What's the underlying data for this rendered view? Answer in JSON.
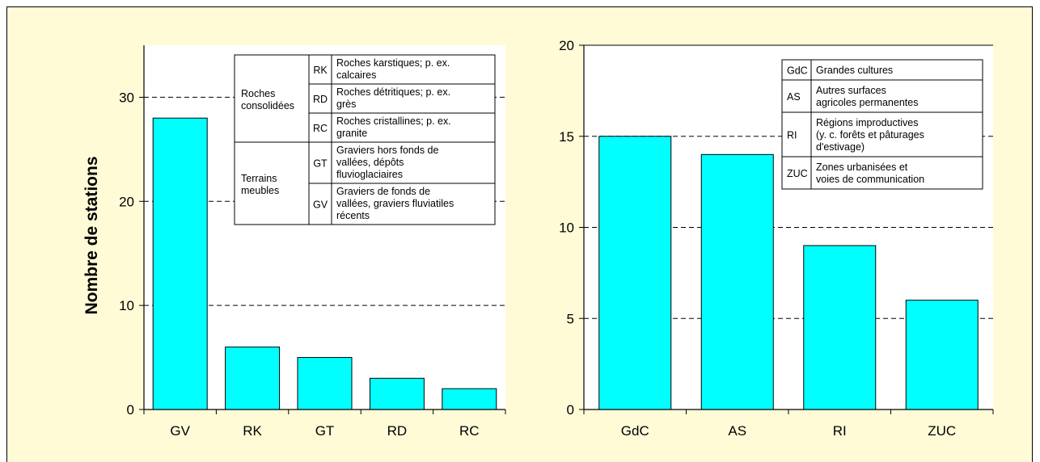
{
  "colors": {
    "bar": "#00ffff",
    "background": "#fffbd7",
    "plot_background": "#ffffff"
  },
  "chart_data": [
    {
      "type": "bar",
      "title": "",
      "xlabel": "",
      "ylabel": "Nombre de stations",
      "ylim": [
        0,
        35
      ],
      "yticks": [
        0,
        10,
        20,
        30
      ],
      "grid": "dashed-horizontal",
      "categories": [
        "GV",
        "RK",
        "GT",
        "RD",
        "RC"
      ],
      "values": [
        28,
        6,
        5,
        3,
        2
      ],
      "legend": {
        "placement": "top-right",
        "groups": [
          {
            "group": [
              "Roches",
              "consolidées"
            ],
            "rows": [
              {
                "code": "RK",
                "lines": [
                  "Roches karstiques; p. ex.",
                  "calcaires"
                ]
              },
              {
                "code": "RD",
                "lines": [
                  "Roches détritiques; p. ex.",
                  "grès"
                ]
              },
              {
                "code": "RC",
                "lines": [
                  "Roches cristallines; p. ex.",
                  "granite"
                ]
              }
            ]
          },
          {
            "group": [
              "Terrains",
              "meubles"
            ],
            "rows": [
              {
                "code": "GT",
                "lines": [
                  "Graviers hors fonds de",
                  "vallées, dépôts",
                  "fluvioglaciaires"
                ]
              },
              {
                "code": "GV",
                "lines": [
                  "Graviers de fonds de",
                  "vallées, graviers fluviatiles",
                  "récents"
                ]
              }
            ]
          }
        ]
      }
    },
    {
      "type": "bar",
      "title": "",
      "xlabel": "",
      "ylabel": "",
      "ylim": [
        0,
        20
      ],
      "yticks": [
        0,
        5,
        10,
        15,
        20
      ],
      "grid": "dashed-horizontal",
      "categories": [
        "GdC",
        "AS",
        "RI",
        "ZUC"
      ],
      "values": [
        15,
        14,
        9,
        6
      ],
      "legend": {
        "placement": "top-right",
        "rows": [
          {
            "code": "GdC",
            "lines": [
              "Grandes cultures"
            ]
          },
          {
            "code": "AS",
            "lines": [
              "Autres surfaces",
              "agricoles permanentes"
            ]
          },
          {
            "code": "RI",
            "lines": [
              "Régions improductives",
              "(y. c. forêts et pâturages",
              "d'estivage)"
            ]
          },
          {
            "code": "ZUC",
            "lines": [
              "Zones urbanisées et",
              "voies de communication"
            ]
          }
        ]
      }
    }
  ]
}
